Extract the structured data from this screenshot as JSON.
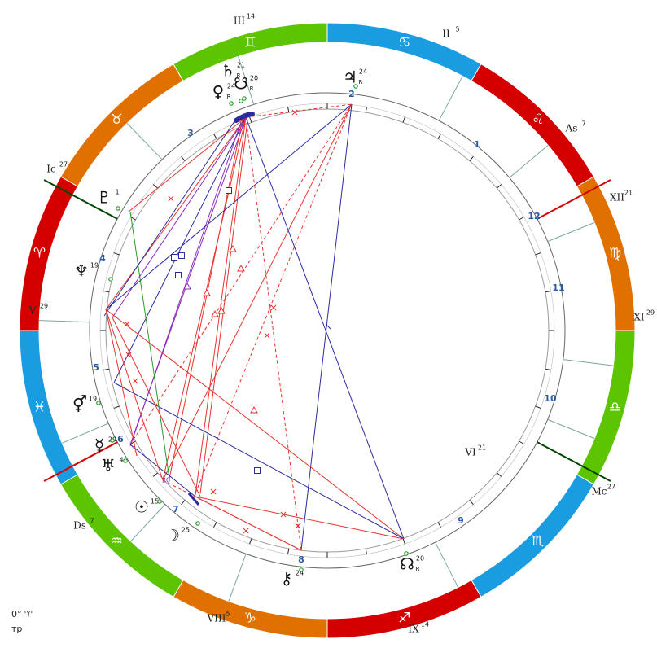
{
  "chart": {
    "zodiac_ring": [
      {
        "sign": "Aries",
        "glyph": "♈",
        "color": "#d40000"
      },
      {
        "sign": "Taurus",
        "glyph": "♉",
        "color": "#e07000"
      },
      {
        "sign": "Gemini",
        "glyph": "♊",
        "color": "#5cc400"
      },
      {
        "sign": "Cancer",
        "glyph": "♋",
        "color": "#1a9de0"
      },
      {
        "sign": "Leo",
        "glyph": "♌",
        "color": "#d40000"
      },
      {
        "sign": "Virgo",
        "glyph": "♍",
        "color": "#e07000"
      },
      {
        "sign": "Libra",
        "glyph": "♎",
        "color": "#5cc400"
      },
      {
        "sign": "Scorpio",
        "glyph": "♏",
        "color": "#1a9de0"
      },
      {
        "sign": "Sagittarius",
        "glyph": "♐",
        "color": "#d40000"
      },
      {
        "sign": "Capricorn",
        "glyph": "♑",
        "color": "#e07000"
      },
      {
        "sign": "Aquarius",
        "glyph": "♒",
        "color": "#5cc400"
      },
      {
        "sign": "Pisces",
        "glyph": "♓",
        "color": "#1a9de0"
      }
    ],
    "angles": [
      {
        "label": "As",
        "deg": "7",
        "color": "#d40000"
      },
      {
        "label": "Ds",
        "deg": "7",
        "color": "#d40000"
      },
      {
        "label": "Mc",
        "deg": "27",
        "color": "#004400"
      },
      {
        "label": "Ic",
        "deg": "27",
        "color": "#004400"
      }
    ],
    "house_cusps": [
      {
        "label": "II",
        "deg": "5"
      },
      {
        "label": "III",
        "deg": "14"
      },
      {
        "label": "V",
        "deg": "29"
      },
      {
        "label": "VI",
        "deg": "21"
      },
      {
        "label": "VIII",
        "deg": "5"
      },
      {
        "label": "IX",
        "deg": "14"
      },
      {
        "label": "XI",
        "deg": "29"
      },
      {
        "label": "XII",
        "deg": "21"
      }
    ],
    "house_numbers": [
      "1",
      "2",
      "3",
      "4",
      "5",
      "6",
      "7",
      "8",
      "9",
      "10",
      "11",
      "12"
    ],
    "planets": [
      {
        "name": "Jupiter",
        "glyph": "♃",
        "deg": "24",
        "retro": "R"
      },
      {
        "name": "Saturn",
        "glyph": "♄",
        "deg": "21",
        "retro": "R"
      },
      {
        "name": "South Node",
        "glyph": "☋",
        "deg": "20",
        "retro": "R"
      },
      {
        "name": "Venus",
        "glyph": "♀",
        "deg": "24",
        "retro": "R"
      },
      {
        "name": "Pluto",
        "glyph": "♇",
        "deg": "1",
        "retro": ""
      },
      {
        "name": "Neptune",
        "glyph": "♆",
        "deg": "19",
        "retro": ""
      },
      {
        "name": "Lilith",
        "glyph": "⚥",
        "deg": "19",
        "retro": ""
      },
      {
        "name": "Mercury",
        "glyph": "☿",
        "deg": "29",
        "retro": ""
      },
      {
        "name": "Uranus",
        "glyph": "♅",
        "deg": "4",
        "retro": ""
      },
      {
        "name": "Sun",
        "glyph": "☉",
        "deg": "15",
        "retro": ""
      },
      {
        "name": "Moon",
        "glyph": "☽",
        "deg": "25",
        "retro": ""
      },
      {
        "name": "Chiron",
        "glyph": "⚷",
        "deg": "24",
        "retro": ""
      },
      {
        "name": "North Node",
        "glyph": "☊",
        "deg": "20",
        "retro": "R"
      }
    ],
    "aspect_marker_label": "20",
    "colors": {
      "aspect_red": "#e8322e",
      "aspect_blue": "#2b2b9e",
      "aspect_purple": "#8a2bbf",
      "aspect_green": "#2a9a2a"
    }
  },
  "footer": {
    "line1": "0° ♈",
    "line2": "тр"
  }
}
